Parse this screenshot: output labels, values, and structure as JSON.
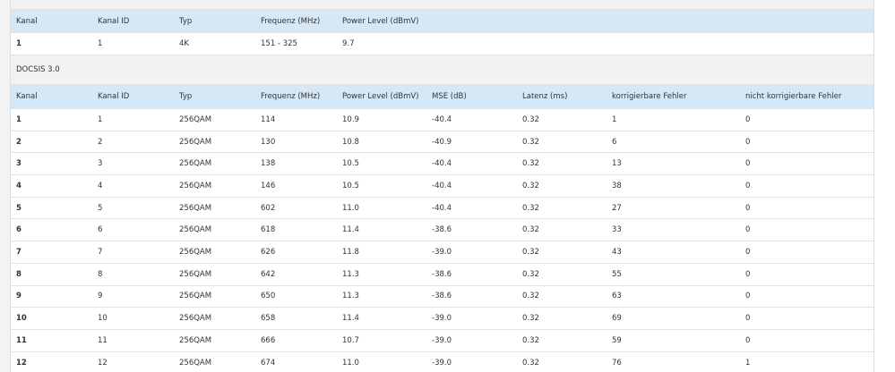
{
  "table1": {
    "header": [
      "Kanal",
      "Kanal ID",
      "Typ",
      "Frequenz (MHz)",
      "Power Level (dBmV)"
    ],
    "rows": [
      [
        "1",
        "1",
        "4K",
        "151 - 325",
        "9.7"
      ]
    ]
  },
  "section": {
    "title": "DOCSIS 3.0"
  },
  "table2": {
    "header": [
      "Kanal",
      "Kanal ID",
      "Typ",
      "Frequenz (MHz)",
      "Power Level (dBmV)",
      "MSE (dB)",
      "Latenz (ms)",
      "korrigierbare Fehler",
      "nicht korrigierbare Fehler"
    ],
    "rows": [
      [
        "1",
        "1",
        "256QAM",
        "114",
        "10.9",
        "-40.4",
        "0.32",
        "1",
        "0"
      ],
      [
        "2",
        "2",
        "256QAM",
        "130",
        "10.8",
        "-40.9",
        "0.32",
        "6",
        "0"
      ],
      [
        "3",
        "3",
        "256QAM",
        "138",
        "10.5",
        "-40.4",
        "0.32",
        "13",
        "0"
      ],
      [
        "4",
        "4",
        "256QAM",
        "146",
        "10.5",
        "-40.4",
        "0.32",
        "38",
        "0"
      ],
      [
        "5",
        "5",
        "256QAM",
        "602",
        "11.0",
        "-40.4",
        "0.32",
        "27",
        "0"
      ],
      [
        "6",
        "6",
        "256QAM",
        "618",
        "11.4",
        "-38.6",
        "0.32",
        "33",
        "0"
      ],
      [
        "7",
        "7",
        "256QAM",
        "626",
        "11.8",
        "-39.0",
        "0.32",
        "43",
        "0"
      ],
      [
        "8",
        "8",
        "256QAM",
        "642",
        "11.3",
        "-38.6",
        "0.32",
        "55",
        "0"
      ],
      [
        "9",
        "9",
        "256QAM",
        "650",
        "11.3",
        "-38.6",
        "0.32",
        "63",
        "0"
      ],
      [
        "10",
        "10",
        "256QAM",
        "658",
        "11.4",
        "-39.0",
        "0.32",
        "69",
        "0"
      ],
      [
        "11",
        "11",
        "256QAM",
        "666",
        "10.7",
        "-39.0",
        "0.32",
        "59",
        "0"
      ],
      [
        "12",
        "12",
        "256QAM",
        "674",
        "11.0",
        "-39.0",
        "0.32",
        "76",
        "1"
      ]
    ]
  }
}
